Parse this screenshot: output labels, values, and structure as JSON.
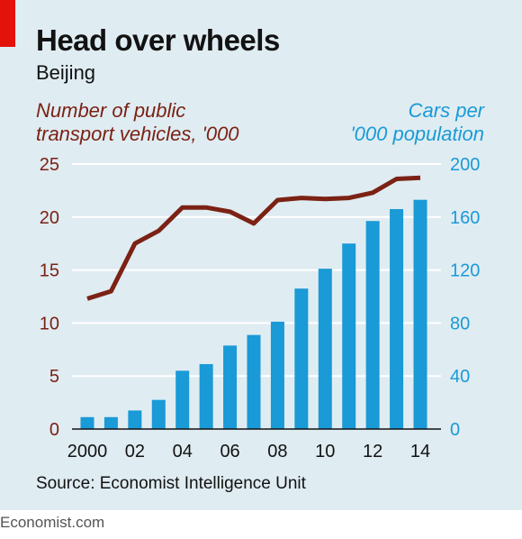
{
  "header": {
    "title": "Head over wheels",
    "subtitle": "Beijing"
  },
  "footer": {
    "source": "Source: Economist Intelligence Unit",
    "brand": "Economist.com"
  },
  "colors": {
    "bars": "#1a9ad6",
    "line": "#7b2214",
    "background": "#dfecf2",
    "accent": "#e3120b"
  },
  "chart_data": {
    "type": "bar",
    "x": [
      2000,
      2001,
      2002,
      2003,
      2004,
      2005,
      2006,
      2007,
      2008,
      2009,
      2010,
      2011,
      2012,
      2013,
      2014
    ],
    "x_tick_labels": [
      "2000",
      "02",
      "04",
      "06",
      "08",
      "10",
      "12",
      "14"
    ],
    "x_tick_values": [
      2000,
      2002,
      2004,
      2006,
      2008,
      2010,
      2012,
      2014
    ],
    "left_axis": {
      "label_line1": "Number of public",
      "label_line2": "transport vehicles, '000",
      "ylim": [
        0,
        25
      ],
      "ticks": [
        "0",
        "5",
        "10",
        "15",
        "20",
        "25"
      ],
      "tick_values": [
        0,
        5,
        10,
        15,
        20,
        25
      ]
    },
    "right_axis": {
      "label_line1": "Cars per",
      "label_line2": "'000 population",
      "ylim": [
        0,
        200
      ],
      "ticks": [
        "0",
        "40",
        "80",
        "120",
        "160",
        "200"
      ],
      "tick_values": [
        0,
        40,
        80,
        120,
        160,
        200
      ]
    },
    "series": [
      {
        "type": "bar",
        "axis": "right",
        "values": [
          9,
          9,
          14,
          22,
          44,
          49,
          63,
          71,
          81,
          106,
          121,
          140,
          157,
          166,
          173
        ]
      },
      {
        "type": "line",
        "axis": "left",
        "values": [
          12.3,
          13.0,
          17.5,
          18.7,
          20.9,
          20.9,
          20.5,
          19.4,
          21.6,
          21.8,
          21.7,
          21.8,
          22.3,
          23.6,
          23.7
        ]
      }
    ],
    "grid": true
  }
}
